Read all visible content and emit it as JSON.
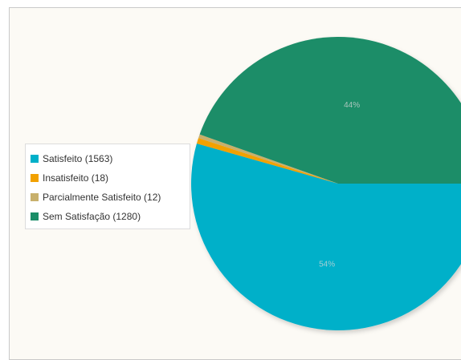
{
  "chart_data": {
    "type": "pie",
    "categories": [
      "Satisfeito",
      "Insatisfeito",
      "Parcialmente Satisfeito",
      "Sem Satisfação"
    ],
    "values": [
      1563,
      18,
      12,
      1280
    ],
    "colors": [
      "#00b0c9",
      "#f2a100",
      "#c8b06c",
      "#1b8d67"
    ],
    "data_labels": [
      "54%",
      "",
      "",
      "44%"
    ],
    "legend_labels": [
      "Satisfeito (1563)",
      "Insatisfeito (18)",
      "Parcialmente Satisfeito (12)",
      "Sem Satisfação (1280)"
    ],
    "legend_position": "left",
    "start_angle_deg": 0,
    "direction": "clockwise"
  }
}
